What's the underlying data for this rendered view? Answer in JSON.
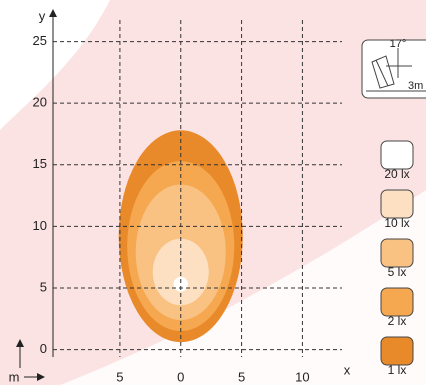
{
  "chart_data": {
    "type": "contour",
    "xlabel": "x",
    "ylabel": "y",
    "unit": "m",
    "xlim": [
      -10.5,
      13.5
    ],
    "ylim": [
      -0.6,
      27.4
    ],
    "xticks": [
      {
        "value": -5,
        "label": "5"
      },
      0,
      5,
      10
    ],
    "yticks": [
      0,
      5,
      10,
      15,
      20,
      25
    ],
    "grid": true,
    "annotations": [
      "17°",
      "3m"
    ],
    "series": [
      {
        "name": "20 lx",
        "color": "#ffffff",
        "values": [
          0,
          5.3,
          0.6,
          0.6
        ]
      },
      {
        "name": "10 lx",
        "color": "#fde0c2",
        "values": [
          0,
          6.3,
          2.3,
          2.7
        ]
      },
      {
        "name": "5 lx",
        "color": "#f9c283",
        "values": [
          0,
          7.9,
          3.7,
          5.5
        ]
      },
      {
        "name": "2 lx",
        "color": "#f5a850",
        "values": [
          0,
          8.4,
          4.4,
          6.9
        ]
      },
      {
        "name": "1 lx",
        "color": "#e98a2a",
        "values": [
          0,
          9.2,
          5.1,
          8.6
        ]
      }
    ]
  }
}
